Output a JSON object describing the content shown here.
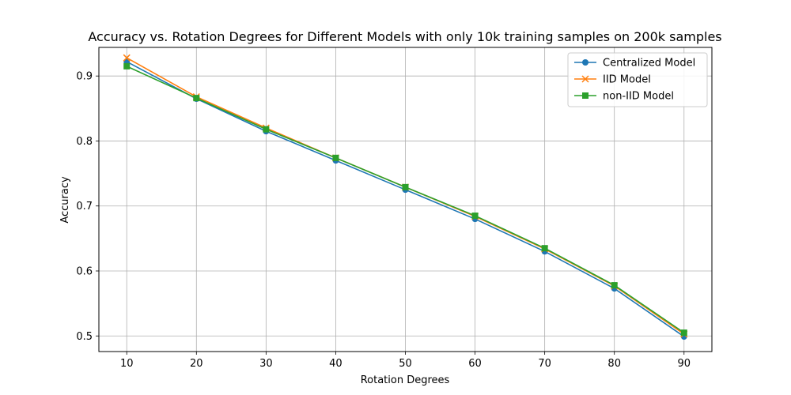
{
  "chart_data": {
    "type": "line",
    "title": "Accuracy vs. Rotation Degrees for Different Models with only 10k training samples on 200k samples",
    "xlabel": "Rotation Degrees",
    "ylabel": "Accuracy",
    "x": [
      10,
      20,
      30,
      40,
      50,
      60,
      70,
      80,
      90
    ],
    "xticks": [
      10,
      20,
      30,
      40,
      50,
      60,
      70,
      80,
      90
    ],
    "yticks": [
      0.5,
      0.6,
      0.7,
      0.8,
      0.9
    ],
    "ytick_labels": [
      "0.5",
      "0.6",
      "0.7",
      "0.8",
      "0.9"
    ],
    "xlim": [
      6,
      94
    ],
    "ylim": [
      0.476,
      0.944
    ],
    "grid": true,
    "legend_position": "top-right",
    "series": [
      {
        "name": "Centralized Model",
        "values": [
          0.922,
          0.865,
          0.815,
          0.77,
          0.725,
          0.68,
          0.63,
          0.573,
          0.499
        ],
        "color": "#1f77b4",
        "marker": "circle"
      },
      {
        "name": "IID Model",
        "values": [
          0.928,
          0.868,
          0.82,
          0.774,
          0.729,
          0.684,
          0.634,
          0.577,
          0.503
        ],
        "color": "#ff7f0e",
        "marker": "x"
      },
      {
        "name": "non-IID Model",
        "values": [
          0.915,
          0.866,
          0.818,
          0.774,
          0.729,
          0.685,
          0.635,
          0.578,
          0.505
        ],
        "color": "#2ca02c",
        "marker": "square"
      }
    ]
  }
}
